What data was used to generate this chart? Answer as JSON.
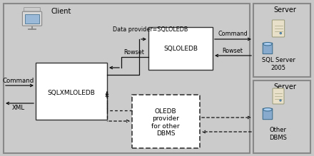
{
  "bg_color": "#c8c8c8",
  "labels": {
    "client": "Client",
    "server1": "Server",
    "server2": "Server",
    "sqlxml": "SQLXMLOLEDB",
    "sqloled": "SQLOLEDB",
    "oledb": "OLEDB\nprovider\nfor other\nDBMS",
    "sql_server": "SQL Server\n2005",
    "other_dbms": "Other\nDBMS",
    "command_in": "Command",
    "xml_out": "XML",
    "data_provider": "Data provider=SQLOLEDB",
    "rowset_mid": "Rowset",
    "command_top": "Command",
    "rowset_right": "Rowset"
  }
}
